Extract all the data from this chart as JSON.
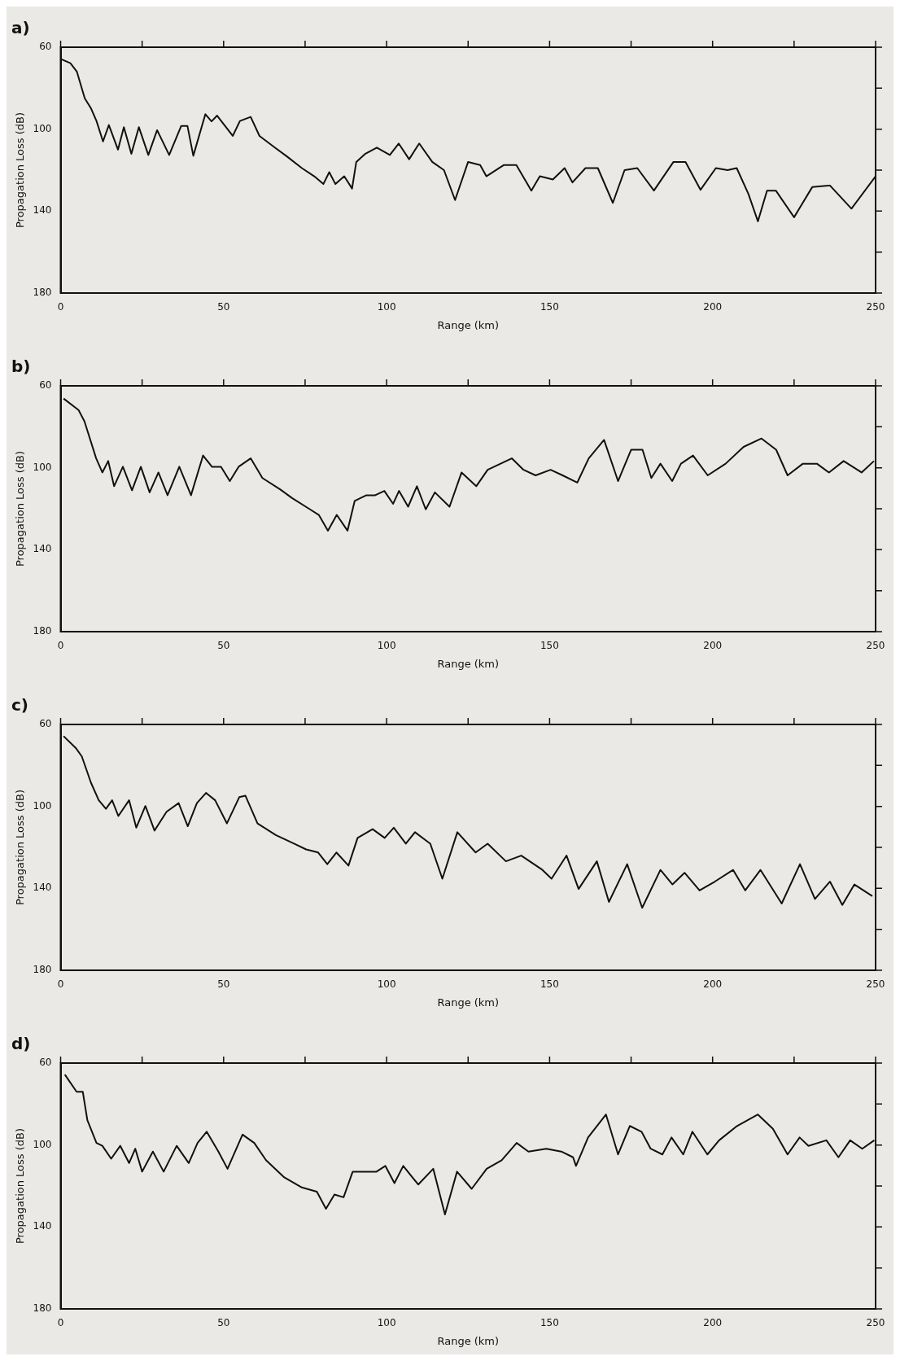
{
  "chart_data": [
    {
      "type": "line",
      "title": "a)",
      "xlabel": "Range (km)",
      "ylabel": "Propagation Loss (dB)",
      "color": "#111111",
      "xlim": [
        0,
        250
      ],
      "ylim": [
        180,
        60
      ],
      "xticks": [
        0,
        {
          "value": 25,
          "label": null
        },
        50,
        {
          "value": 75,
          "label": null
        },
        100,
        {
          "value": 125,
          "label": null
        },
        150,
        {
          "value": 175,
          "label": null
        },
        200,
        {
          "value": 225,
          "label": null
        },
        250
      ],
      "yticks": [
        60,
        {
          "value": 80,
          "label": null
        },
        100,
        {
          "value": 120,
          "label": null
        },
        140,
        {
          "value": 160,
          "label": null
        },
        180
      ],
      "x": [
        0,
        3,
        5,
        7.4,
        9.3,
        11,
        13,
        14.8,
        17.6,
        19.4,
        21.7,
        24,
        26.9,
        29.6,
        33.3,
        37,
        38.9,
        40.7,
        44.4,
        46.3,
        48,
        52.8,
        55,
        58.3,
        61,
        65.7,
        69.4,
        74,
        77.8,
        80.6,
        82.4,
        84.3,
        87,
        89.4,
        90.7,
        93.5,
        97,
        101,
        103.7,
        106.9,
        110,
        114,
        117.6,
        121,
        125,
        128.7,
        130.6,
        136,
        139.8,
        144.4,
        147,
        151,
        154.6,
        157,
        161,
        164.8,
        169.4,
        173,
        176.9,
        182,
        188,
        191.7,
        196.3,
        201,
        204.6,
        207.4,
        211,
        213.9,
        216.7,
        219.4,
        225,
        230.6,
        236,
        242.6,
        250
      ],
      "values": [
        65.7,
        67.8,
        72,
        84.9,
        89.8,
        96,
        106,
        98,
        110,
        99,
        112,
        99,
        112.6,
        100.5,
        112.6,
        98.4,
        98.4,
        113,
        92.7,
        96.2,
        93.4,
        103.3,
        96,
        94,
        103.3,
        109,
        113.3,
        119,
        123,
        126.8,
        121,
        126.8,
        123,
        129,
        116,
        112,
        109,
        112.6,
        107,
        114.7,
        107,
        116,
        120,
        134.6,
        116,
        117.5,
        123,
        117.5,
        117.5,
        130,
        123,
        124.6,
        119,
        126,
        119,
        119,
        136,
        120,
        119,
        130,
        116,
        116,
        129.6,
        119,
        120,
        119,
        131.7,
        145,
        130,
        130,
        143,
        128.2,
        127.5,
        138.8,
        123
      ]
    },
    {
      "type": "line",
      "title": "b)",
      "xlabel": "Range (km)",
      "ylabel": "Propagation Loss (dB)",
      "color": "#111111",
      "xlim": [
        0,
        250
      ],
      "ylim": [
        180,
        60
      ],
      "xticks": [
        0,
        {
          "value": 25,
          "label": null
        },
        50,
        {
          "value": 75,
          "label": null
        },
        100,
        {
          "value": 125,
          "label": null
        },
        150,
        {
          "value": 175,
          "label": null
        },
        200,
        {
          "value": 225,
          "label": null
        },
        250
      ],
      "yticks": [
        60,
        {
          "value": 80,
          "label": null
        },
        100,
        {
          "value": 120,
          "label": null
        },
        140,
        {
          "value": 160,
          "label": null
        },
        180
      ],
      "x": [
        0.9,
        5.5,
        7.3,
        10.9,
        12.8,
        14.6,
        16.4,
        19.1,
        21.9,
        24.6,
        27.3,
        30,
        32.8,
        36.4,
        40,
        43.7,
        46.4,
        49.2,
        51.9,
        54.6,
        58.3,
        61.9,
        67.4,
        71,
        76.5,
        79.2,
        82,
        84.7,
        88,
        90.2,
        93.8,
        96.5,
        99.3,
        102,
        103.8,
        106.6,
        109.3,
        112,
        114.8,
        119.3,
        123,
        127.5,
        131,
        138.4,
        142,
        145.7,
        150.3,
        154,
        158.5,
        162,
        166.7,
        171,
        175,
        178.5,
        181.2,
        184,
        187.6,
        190.3,
        194,
        198.5,
        204,
        209.5,
        215,
        219.5,
        223,
        227.7,
        232,
        235.7,
        240.2,
        245.7,
        249.5
      ],
      "values": [
        66.2,
        71.8,
        77.3,
        95.4,
        102.3,
        96.7,
        109,
        99.5,
        111,
        99.5,
        112,
        102.3,
        113.4,
        99.5,
        113.4,
        94,
        99.5,
        99.5,
        106.5,
        99.5,
        95.4,
        105,
        110.6,
        114.8,
        120.3,
        123,
        130.7,
        123,
        130.7,
        116.2,
        113.4,
        113.4,
        111.3,
        117.6,
        111.3,
        119,
        109,
        120.3,
        112,
        119,
        102.3,
        109,
        101,
        95.4,
        101,
        103.7,
        101,
        103.7,
        107.2,
        95.4,
        86.4,
        106.5,
        91.2,
        91.2,
        105,
        98,
        106.5,
        98,
        94,
        103.7,
        98,
        89.8,
        85.7,
        91.2,
        103.7,
        98,
        98,
        102.3,
        96.7,
        102.3,
        96.7
      ]
    },
    {
      "type": "line",
      "title": "c)",
      "xlabel": "Range (km)",
      "ylabel": "Propagation Loss (dB)",
      "color": "#111111",
      "xlim": [
        0,
        250
      ],
      "ylim": [
        180,
        60
      ],
      "xticks": [
        0,
        {
          "value": 25,
          "label": null
        },
        50,
        {
          "value": 75,
          "label": null
        },
        100,
        {
          "value": 125,
          "label": null
        },
        150,
        {
          "value": 175,
          "label": null
        },
        200,
        {
          "value": 225,
          "label": null
        },
        250
      ],
      "yticks": [
        60,
        {
          "value": 80,
          "label": null
        },
        100,
        {
          "value": 120,
          "label": null
        },
        140,
        {
          "value": 160,
          "label": null
        },
        180
      ],
      "x": [
        0.9,
        4.6,
        6.5,
        9.3,
        11.7,
        13.9,
        15.8,
        17.7,
        21,
        23.2,
        26,
        28.8,
        32.5,
        36.2,
        39,
        41.8,
        44.6,
        47.4,
        51,
        54.8,
        56.7,
        60.4,
        66,
        71.6,
        75.3,
        79,
        81.8,
        84.6,
        88.3,
        91.1,
        95.7,
        99.4,
        102.2,
        105.9,
        108.7,
        113.4,
        117.1,
        121.7,
        127.3,
        131,
        136.6,
        141.3,
        147.8,
        150.6,
        155.2,
        158.9,
        164.5,
        168.2,
        173.8,
        178.4,
        184,
        187.7,
        191.4,
        196,
        200.7,
        206.3,
        210,
        214.7,
        221.2,
        226.8,
        231.4,
        236,
        239.8,
        243.5,
        249
      ],
      "values": [
        65.7,
        71.4,
        75.6,
        88.4,
        97,
        101.2,
        97,
        104.7,
        97,
        110.4,
        99.8,
        111.8,
        102.6,
        98.4,
        109.7,
        98.4,
        93.4,
        97,
        108.3,
        95.5,
        94.8,
        108.3,
        114,
        118.2,
        121,
        122.5,
        128.2,
        122.5,
        128.9,
        115.4,
        111.1,
        115.4,
        110.4,
        118.2,
        112.6,
        118.2,
        135.3,
        112.6,
        122.5,
        118.2,
        126.8,
        124,
        131,
        135.3,
        124,
        140.3,
        126.8,
        146.6,
        128.2,
        149.5,
        131,
        138.1,
        132.4,
        141,
        136.7,
        131,
        141,
        131,
        147.4,
        128.2,
        145.2,
        136.7,
        148.1,
        138.1,
        143.8
      ]
    },
    {
      "type": "line",
      "title": "d)",
      "xlabel": "Range (km)",
      "ylabel": "Propagation Loss (dB)",
      "color": "#111111",
      "xlim": [
        0,
        250
      ],
      "ylim": [
        180,
        60
      ],
      "xticks": [
        0,
        {
          "value": 25,
          "label": null
        },
        50,
        {
          "value": 75,
          "label": null
        },
        100,
        {
          "value": 125,
          "label": null
        },
        150,
        {
          "value": 175,
          "label": null
        },
        200,
        {
          "value": 225,
          "label": null
        },
        250
      ],
      "yticks": [
        60,
        {
          "value": 80,
          "label": null
        },
        100,
        {
          "value": 120,
          "label": null
        },
        140,
        {
          "value": 160,
          "label": null
        },
        180
      ],
      "x": [
        1.3,
        4.9,
        6.8,
        8.2,
        11,
        12.8,
        15.5,
        18.3,
        21,
        22.9,
        25,
        28.3,
        31.6,
        35.6,
        39.3,
        42,
        44.8,
        48.4,
        51.2,
        55.8,
        59.4,
        63,
        68.6,
        74,
        78.6,
        81.4,
        84,
        86.8,
        89.6,
        93.2,
        96.9,
        99.6,
        102.4,
        105.1,
        109.7,
        114.3,
        117.9,
        121.6,
        126.1,
        130.7,
        135.3,
        139.9,
        143.5,
        149,
        153.6,
        157.2,
        158.1,
        161.8,
        167.3,
        171,
        174.6,
        178.2,
        181,
        184.6,
        187.4,
        191,
        193.8,
        198.4,
        202,
        207.5,
        213.9,
        218.5,
        223,
        226.7,
        229.4,
        234.9,
        238.6,
        242.2,
        245.9,
        249.6
      ],
      "values": [
        65.6,
        74,
        74,
        87.9,
        99,
        100.4,
        106.7,
        100.4,
        108.8,
        101.8,
        113,
        103.2,
        113,
        100.4,
        108.8,
        99,
        93.5,
        103.2,
        111.6,
        94.9,
        99,
        107.4,
        115.8,
        120.7,
        122.8,
        131.1,
        124.2,
        125.5,
        113,
        113,
        113,
        110.2,
        118.6,
        110.2,
        119.3,
        111.6,
        133.9,
        113,
        121.4,
        111.6,
        107.4,
        99,
        103.2,
        101.8,
        103.2,
        106,
        110.2,
        96.3,
        85.1,
        104.6,
        90.7,
        93.5,
        101.8,
        104.6,
        96.3,
        104.6,
        93.5,
        104.6,
        97.7,
        90.7,
        85.1,
        92.1,
        104.6,
        96.3,
        100.4,
        97.7,
        106,
        97.7,
        101.8,
        97.7
      ]
    }
  ]
}
